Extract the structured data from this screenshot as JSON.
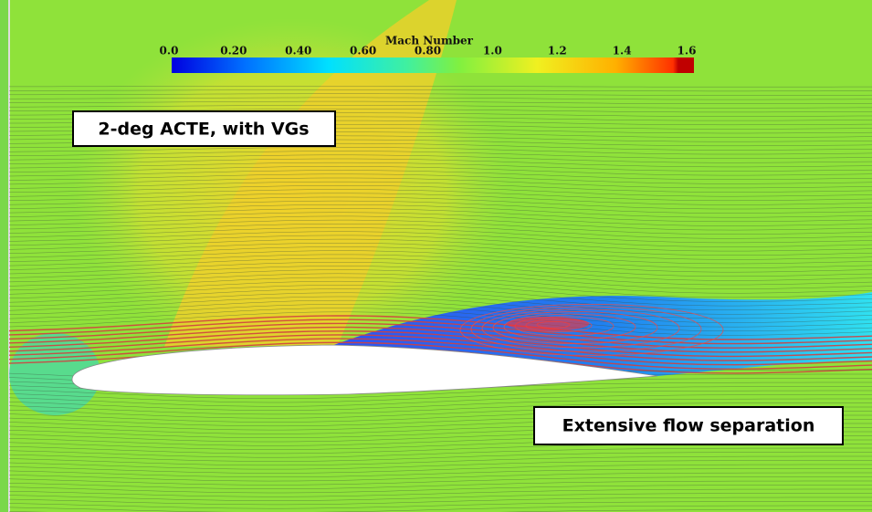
{
  "colorbar": {
    "title": "Mach Number",
    "labels": [
      "0.0",
      "0.20",
      "0.40",
      "0.60",
      "0.80",
      "1.0",
      "1.2",
      "1.4",
      "1.6"
    ]
  },
  "annotations": [
    "2-deg ACTE, with VGs",
    "Extensive flow separation"
  ]
}
